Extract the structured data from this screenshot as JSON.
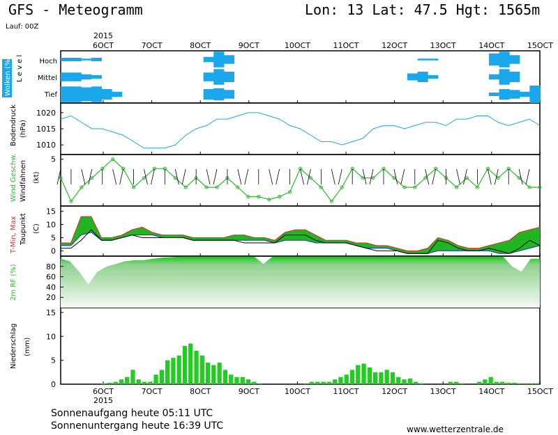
{
  "header": {
    "title": "GFS - Meteogramm",
    "location": "Lon: 13 Lat: 47.5 Hgt: 1565m",
    "run": "Lauf: 00Z"
  },
  "footer": {
    "sunrise": "Sonnenaufgang heute 05:11 UTC",
    "sunset": "Sonnenuntergang heute 16:39 UTC",
    "site": "www.wetterzentrale.de"
  },
  "chart_data": {
    "type": "meteogram",
    "year": "2015",
    "x_ticks": [
      "6OCT",
      "7OCT",
      "8OCT",
      "9OCT",
      "10OCT",
      "11OCT",
      "12OCT",
      "13OCT",
      "14OCT",
      "15OCT"
    ],
    "x_start": "5OCT 06:00",
    "x_step_hours": 6,
    "panels": [
      {
        "id": "clouds",
        "ylabel": "Wolken (%)",
        "ylabel2": "L e v e l",
        "levels": [
          "Hoch",
          "Mittel",
          "Tief"
        ],
        "note": "cloud cover fraction per level (0-1) per 6h step",
        "hoch": [
          0.2,
          0.2,
          0.1,
          0.2,
          0,
          0,
          0,
          0,
          0,
          0,
          0,
          0,
          0,
          0,
          0.3,
          0.9,
          0.5,
          0,
          0,
          0,
          0,
          0,
          0,
          0,
          0,
          0,
          0,
          0,
          0,
          0,
          0,
          0,
          0,
          0,
          0,
          0.1,
          0.1,
          0,
          0,
          0,
          0,
          0,
          0.7,
          0.9,
          0.5,
          0,
          0
        ],
        "mittel": [
          0.5,
          0.5,
          0.3,
          0.2,
          0,
          0,
          0,
          0,
          0,
          0,
          0,
          0,
          0,
          0,
          0.5,
          0.9,
          0.6,
          0,
          0,
          0,
          0,
          0,
          0,
          0,
          0,
          0,
          0,
          0,
          0,
          0,
          0,
          0,
          0,
          0,
          0.4,
          0.6,
          0.2,
          0,
          0,
          0,
          0,
          0,
          0.3,
          0.9,
          0.6,
          0,
          0
        ],
        "tief": [
          0.9,
          0.9,
          0.8,
          0.9,
          0.6,
          0.3,
          0,
          0,
          0,
          0,
          0,
          0,
          0,
          0,
          0.6,
          0.7,
          0.5,
          0,
          0,
          0,
          0,
          0,
          0,
          0,
          0,
          0,
          0,
          0,
          0,
          0,
          0,
          0,
          0,
          0,
          0,
          0,
          0,
          0,
          0,
          0,
          0,
          0,
          0.2,
          0.6,
          0.5,
          0.3,
          1.0
        ]
      },
      {
        "id": "pressure",
        "ylabel": "Bodendruck",
        "ylabel2": "(hPa)",
        "yticks": [
          1010,
          1015,
          1020
        ],
        "ylim": [
          1007,
          1023
        ],
        "values": [
          1018,
          1019,
          1017,
          1015,
          1015,
          1014,
          1013,
          1011,
          1009,
          1009,
          1009,
          1010,
          1013,
          1015,
          1016,
          1018,
          1018,
          1019,
          1020,
          1020,
          1019,
          1018,
          1016,
          1015,
          1013,
          1011,
          1011,
          1010,
          1011,
          1012,
          1015,
          1016,
          1016,
          1015,
          1016,
          1017,
          1017,
          1016,
          1018,
          1018,
          1019,
          1019,
          1017,
          1016,
          1017,
          1018,
          1016
        ]
      },
      {
        "id": "wind",
        "ylabel": "Wind Geschw.",
        "ylabel2": "Windfahnen",
        "ylabel3": "(kt)",
        "yticks": [
          5
        ],
        "ylim": [
          0,
          5.5
        ],
        "values": [
          3,
          0.5,
          2,
          3,
          4,
          5,
          4,
          2,
          3,
          4,
          4,
          3,
          2,
          3,
          2,
          2,
          3,
          2,
          1,
          1,
          0.7,
          1,
          1.5,
          4,
          3,
          2,
          0.5,
          2,
          4,
          3,
          3,
          4,
          3,
          2,
          2,
          3,
          4,
          3,
          2,
          3,
          2,
          4,
          3,
          4,
          3,
          2,
          2
        ]
      },
      {
        "id": "temperature",
        "ylabel": "T-Min, Max",
        "ylabel2": "Taupunkt",
        "ylabel3": "(C)",
        "yticks": [
          0,
          5,
          10,
          15
        ],
        "ylim": [
          -2,
          17
        ],
        "tmax": [
          3,
          3,
          13,
          13,
          5,
          5,
          6,
          8,
          9,
          7,
          6,
          6,
          6,
          5,
          5,
          5,
          5,
          6,
          6,
          5,
          5,
          4,
          7,
          8,
          8,
          6,
          4,
          4,
          4,
          3,
          3,
          2,
          2,
          1,
          0,
          0,
          1,
          5,
          4,
          2,
          1,
          1,
          2,
          3,
          4,
          7,
          8,
          9,
          10,
          4
        ],
        "tmin": [
          2,
          2,
          6,
          7,
          4,
          4,
          5,
          6,
          6,
          6,
          5,
          5,
          5,
          4,
          4,
          4,
          4,
          4,
          4,
          4,
          4,
          3,
          4,
          4,
          4,
          3,
          3,
          3,
          3,
          2,
          1,
          1,
          1,
          0,
          -1,
          -1,
          -1,
          0,
          0,
          0,
          0,
          0,
          0,
          -1,
          -1,
          0,
          1,
          2
        ],
        "dewpoint": [
          1,
          1,
          4,
          8,
          4,
          4,
          5,
          6,
          5,
          5,
          5,
          5,
          5,
          4,
          4,
          4,
          4,
          4,
          3,
          3,
          3,
          3,
          6,
          6,
          6,
          4,
          3,
          3,
          3,
          2,
          1,
          0,
          0,
          0,
          -1,
          -1,
          -1,
          4,
          3,
          1,
          0,
          0,
          1,
          0,
          -1,
          1,
          4,
          2
        ]
      },
      {
        "id": "humidity",
        "ylabel": "2m RF (%)",
        "yticks": [
          20,
          40,
          60,
          80
        ],
        "ylim": [
          0,
          100
        ],
        "values": [
          95,
          90,
          70,
          45,
          70,
          80,
          85,
          90,
          92,
          92,
          95,
          97,
          98,
          99,
          99,
          99,
          99,
          99,
          99,
          99,
          99,
          99,
          85,
          99,
          99,
          99,
          99,
          99,
          99,
          99,
          99,
          99,
          99,
          99,
          99,
          99,
          99,
          99,
          99,
          99,
          99,
          99,
          99,
          99,
          99,
          99,
          99,
          99,
          99,
          80,
          70,
          95,
          95
        ]
      },
      {
        "id": "precip",
        "ylabel": "Niederschlag",
        "ylabel2": "(mm)",
        "yticks": [
          0,
          5,
          10,
          15
        ],
        "ylim": [
          0,
          16
        ],
        "values": [
          0,
          0,
          0,
          0,
          0,
          0,
          0,
          0.2,
          0.3,
          0.5,
          1,
          1.5,
          3,
          1,
          0.5,
          0.5,
          2,
          3,
          5,
          5.5,
          6,
          8,
          8.5,
          7,
          6,
          4.5,
          4,
          4.5,
          3,
          2,
          1.5,
          1.5,
          1,
          0.5,
          0.2,
          0,
          0,
          0,
          0,
          0,
          0,
          0,
          0.2,
          0.5,
          0.5,
          0.5,
          0.5,
          1,
          1.5,
          2,
          3,
          4,
          4.3,
          3.5,
          2.5,
          2.5,
          3,
          2.5,
          1.5,
          1,
          1.2,
          0.5,
          0.2,
          0,
          0,
          0,
          0,
          0.5,
          0.5,
          0.2,
          0,
          0,
          0.5,
          1,
          1.5,
          0.5,
          0.5,
          0.3,
          0.3,
          0.2,
          0.2,
          0.2,
          0.2
        ]
      }
    ],
    "colors": {
      "cloud": "#1aa7ec",
      "pressure": "#1aa7ec",
      "wind": "#2db82d",
      "tmax": "#e8272b",
      "tmin": "#1a2fe8",
      "temp_fill": "#22b522",
      "temp_warm": "#d4d21c",
      "humidity": "#11cc11",
      "precip": "#22cc22"
    }
  }
}
